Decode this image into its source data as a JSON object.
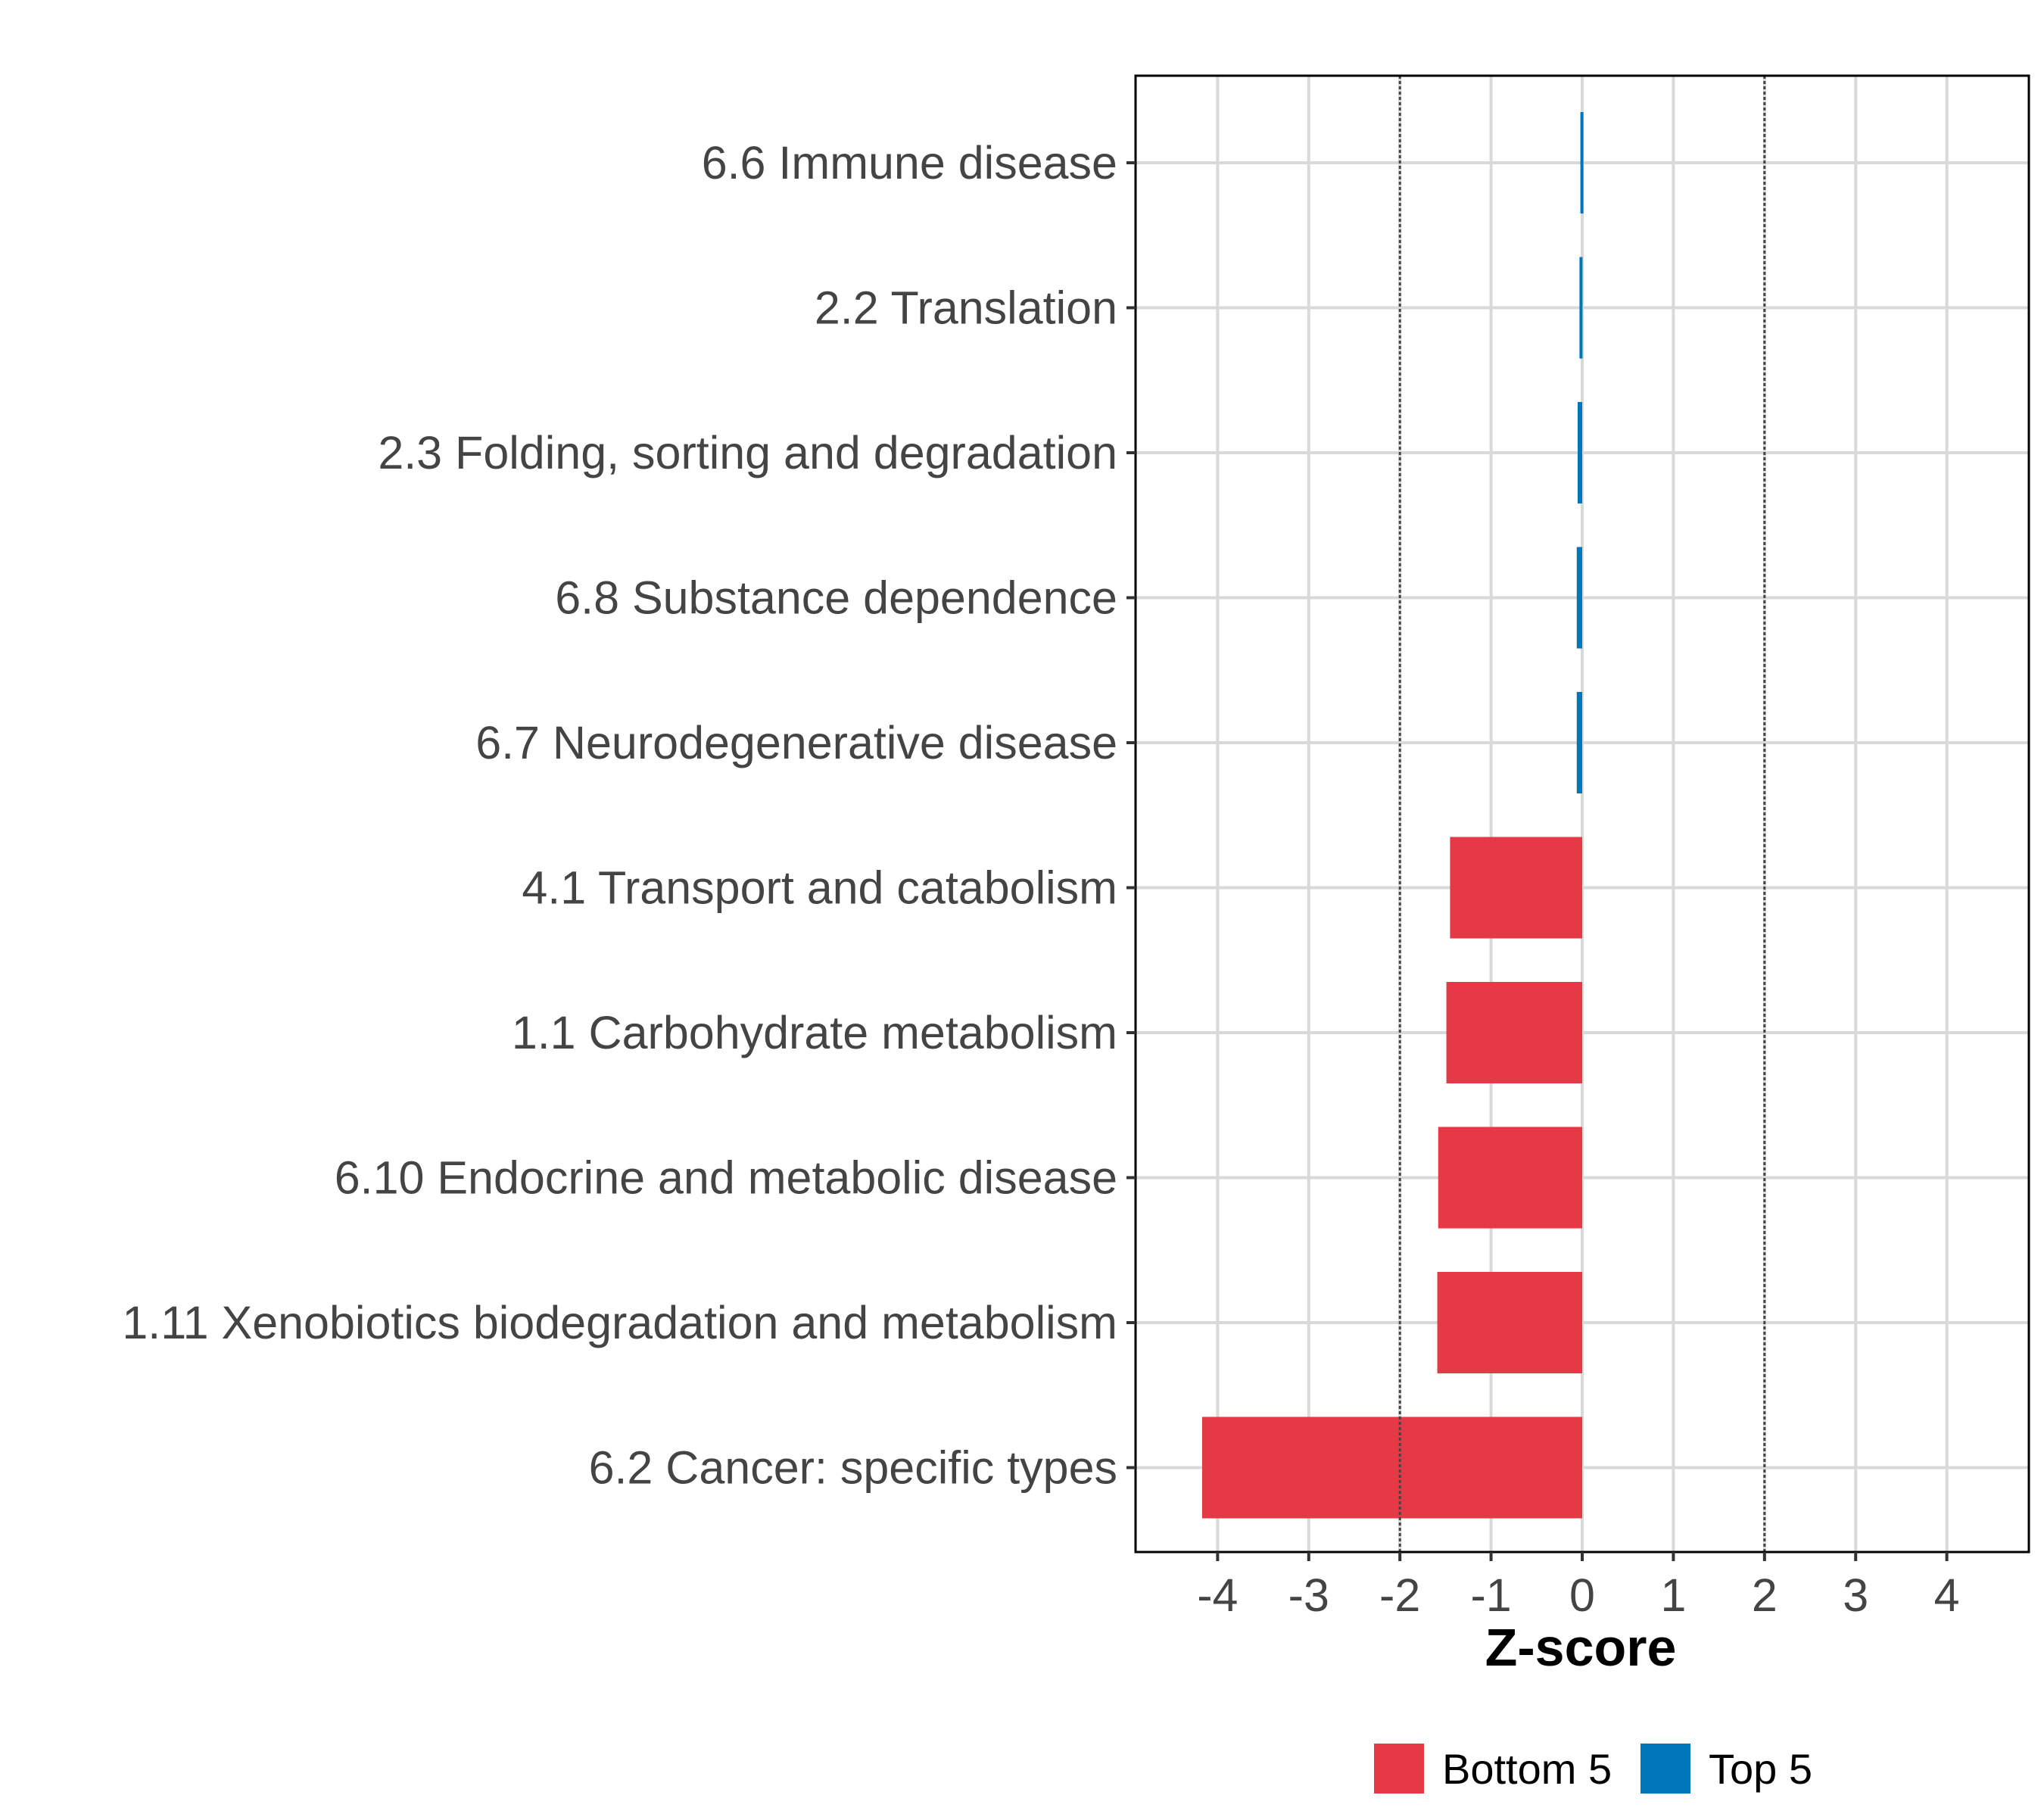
{
  "chart_data": {
    "type": "bar",
    "orientation": "horizontal",
    "title": "",
    "xlabel": "Z-score",
    "ylabel": "",
    "xlim": [
      -4.9,
      4.9
    ],
    "x_ticks": [
      -4,
      -3,
      -2,
      -1,
      0,
      1,
      2,
      3,
      4
    ],
    "x_tick_labels": [
      "-4",
      "-3",
      "-2",
      "-1",
      "0",
      "1",
      "2",
      "3",
      "4"
    ],
    "reference_lines": [
      -2,
      2
    ],
    "grid": true,
    "legend_position": "bottom",
    "categories": [
      "6.6 Immune disease",
      "2.2 Translation",
      "2.3 Folding, sorting and degradation",
      "6.8 Substance dependence",
      "6.7 Neurodegenerative disease",
      "4.1 Transport and catabolism",
      "1.1 Carbohydrate metabolism",
      "6.10 Endocrine and metabolic disease",
      "1.11 Xenobiotics biodegradation and metabolism",
      "6.2 Cancer: specific types"
    ],
    "values": [
      -0.02,
      -0.03,
      -0.05,
      -0.06,
      -0.06,
      -1.45,
      -1.49,
      -1.58,
      -1.59,
      -4.17
    ],
    "groups": [
      "Top 5",
      "Top 5",
      "Top 5",
      "Top 5",
      "Top 5",
      "Bottom 5",
      "Bottom 5",
      "Bottom 5",
      "Bottom 5",
      "Bottom 5"
    ],
    "legend": [
      {
        "label": "Bottom 5",
        "color": "#E63946"
      },
      {
        "label": "Top 5",
        "color": "#0077BB"
      }
    ]
  }
}
